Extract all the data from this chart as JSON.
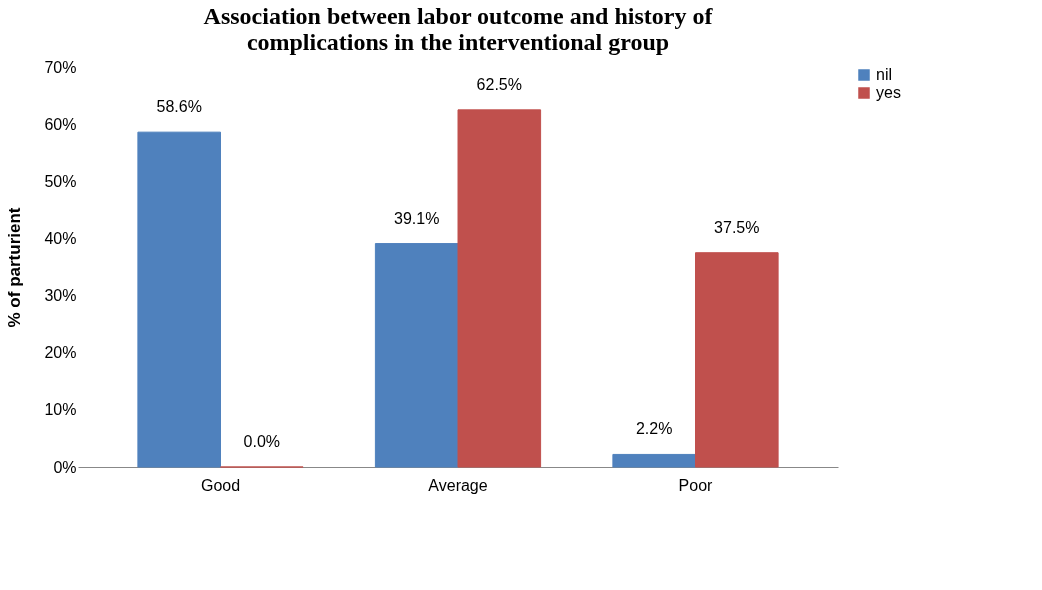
{
  "chart_data": {
    "type": "bar",
    "title": [
      "Association between  labor outcome and history of",
      "complications in the interventional group"
    ],
    "ylabel": "% of parturient",
    "categories": [
      "Good",
      "Average",
      "Poor"
    ],
    "series": [
      {
        "name": "nil",
        "color": "#4f81bd",
        "values": [
          58.6,
          39.1,
          2.2
        ],
        "value_labels": [
          "58.6%",
          "39.1%",
          "2.2%"
        ]
      },
      {
        "name": "yes",
        "color": "#c0504d",
        "values": [
          0.0,
          62.5,
          37.5
        ],
        "value_labels": [
          "0.0%",
          "62.5%",
          "37.5%"
        ]
      }
    ],
    "ylim": [
      0,
      70
    ],
    "yticks": [
      {
        "value": 0,
        "label": "0%"
      },
      {
        "value": 10,
        "label": "10%"
      },
      {
        "value": 20,
        "label": "20%"
      },
      {
        "value": 30,
        "label": "30%"
      },
      {
        "value": 40,
        "label": "40%"
      },
      {
        "value": 50,
        "label": "50%"
      },
      {
        "value": 60,
        "label": "60%"
      },
      {
        "value": 70,
        "label": "70%"
      }
    ],
    "grid": false,
    "legend": "right"
  }
}
